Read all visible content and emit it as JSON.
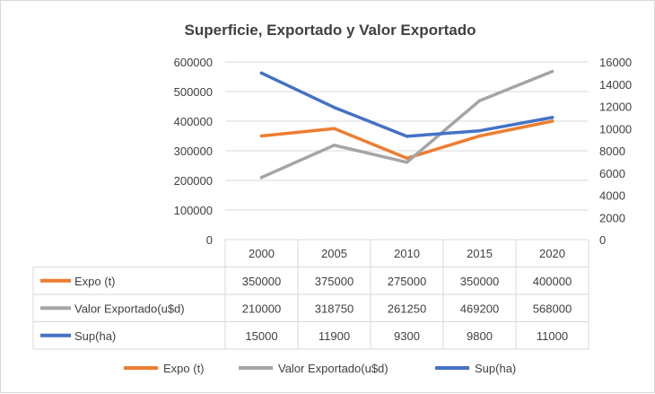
{
  "chart_data": {
    "type": "line",
    "title": "Superficie, Exportado y Valor Exportado",
    "categories": [
      "2000",
      "2005",
      "2010",
      "2015",
      "2020"
    ],
    "y_left": {
      "min": 0,
      "max": 600000,
      "ticks": [
        "0",
        "100000",
        "200000",
        "300000",
        "400000",
        "500000",
        "600000"
      ]
    },
    "y_right": {
      "min": 0,
      "max": 16000,
      "ticks": [
        "0",
        "2000",
        "4000",
        "6000",
        "8000",
        "10000",
        "12000",
        "14000",
        "16000"
      ]
    },
    "series": [
      {
        "name": "Expo (t)",
        "axis": "left",
        "color": "#ED7D31",
        "values": [
          350000,
          375000,
          275000,
          350000,
          400000
        ],
        "labels": [
          "350000",
          "375000",
          "275000",
          "350000",
          "400000"
        ]
      },
      {
        "name": "Valor Exportado(u$d)",
        "axis": "left",
        "color": "#A5A5A5",
        "values": [
          210000,
          318750,
          261250,
          469200,
          568000
        ],
        "labels": [
          "210000",
          "318750",
          "261250",
          "469200",
          "568000"
        ]
      },
      {
        "name": "Sup(ha)",
        "axis": "right",
        "color": "#4472C4",
        "values": [
          15000,
          11900,
          9300,
          9800,
          11000
        ],
        "labels": [
          "15000",
          "11900",
          "9300",
          "9800",
          "11000"
        ]
      }
    ],
    "legend_position": "bottom",
    "data_table": true,
    "grid": true
  }
}
